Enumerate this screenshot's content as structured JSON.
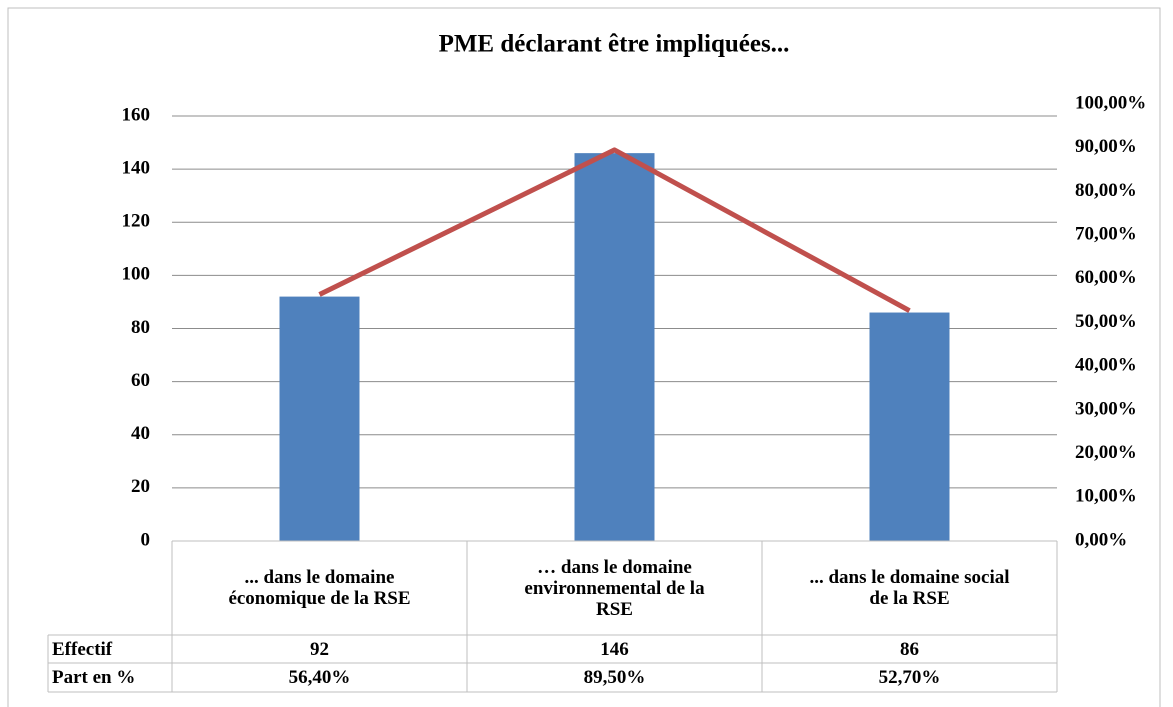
{
  "chart_data": {
    "type": "bar_line",
    "title": "PME déclarant être impliquées...",
    "categories": [
      "... dans le domaine économique de la RSE",
      "… dans le domaine environnemental de la RSE",
      "... dans le domaine social de la RSE"
    ],
    "series": [
      {
        "name": "Effectif",
        "color": "#4f81bd",
        "type": "bar",
        "values": [
          92,
          146,
          86
        ]
      },
      {
        "name": "Part en %",
        "color": "#c0504d",
        "type": "line",
        "axis": "y2",
        "values": [
          56.4,
          89.5,
          52.7
        ],
        "value_labels": [
          "56,40%",
          "89,50%",
          "52,70%"
        ]
      }
    ],
    "ylim": [
      0,
      164.5
    ],
    "yticks": [
      0,
      20,
      40,
      60,
      80,
      100,
      120,
      140,
      160
    ],
    "y2lim": [
      0,
      100
    ],
    "y2ticks": [
      {
        "value": 0,
        "label": "0,00%"
      },
      {
        "value": 10,
        "label": "10,00%"
      },
      {
        "value": 20,
        "label": "20,00%"
      },
      {
        "value": 30,
        "label": "30,00%"
      },
      {
        "value": 40,
        "label": "40,00%"
      },
      {
        "value": 50,
        "label": "50,00%"
      },
      {
        "value": 60,
        "label": "60,00%"
      },
      {
        "value": 70,
        "label": "70,00%"
      },
      {
        "value": 80,
        "label": "80,00%"
      },
      {
        "value": 90,
        "label": "90,00%"
      },
      {
        "value": 100,
        "label": "100,00%"
      }
    ],
    "grid": true
  }
}
